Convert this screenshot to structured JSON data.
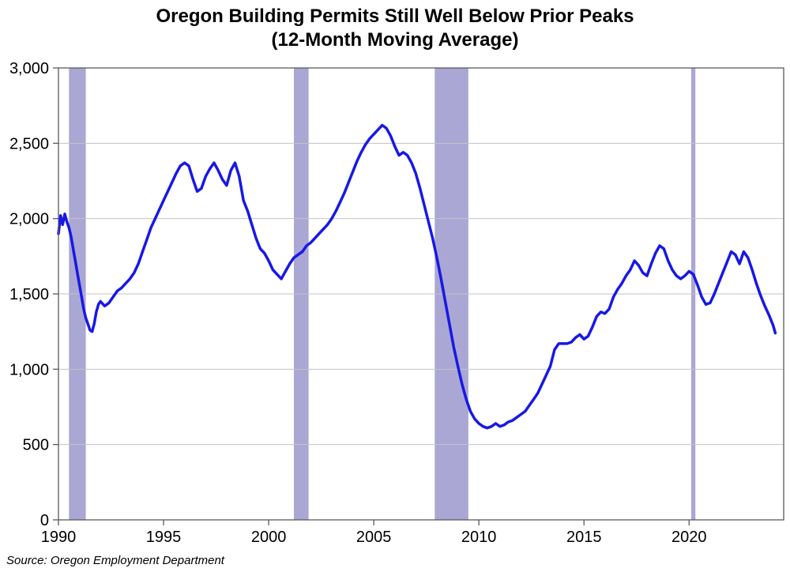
{
  "chart": {
    "type": "line",
    "title_line1": "Oregon Building Permits Still Well Below Prior Peaks",
    "title_line2": "(12-Month Moving Average)",
    "title_fontsize": 24,
    "source_text": "Source: Oregon Employment Department",
    "source_fontsize": 15,
    "background_color": "#ffffff",
    "plot_border_color": "#5b5b5b",
    "grid_color": "#c3c3c3",
    "grid_width": 1,
    "line_color": "#1818e6",
    "line_width": 3.5,
    "recession_fill": "#a3a0d0",
    "recession_opacity": 0.92,
    "xlim": [
      1990,
      2024.5
    ],
    "ylim": [
      0,
      3000
    ],
    "xtick_step": 5,
    "xticks": [
      1990,
      1995,
      2000,
      2005,
      2010,
      2015,
      2020
    ],
    "xtick_labels": [
      "1990",
      "1995",
      "2000",
      "2005",
      "2010",
      "2015",
      "2020"
    ],
    "ytick_step": 500,
    "yticks": [
      0,
      500,
      1000,
      1500,
      2000,
      2500,
      3000
    ],
    "ytick_labels": [
      "0",
      "500",
      "1,000",
      "1,500",
      "2,000",
      "2,500",
      "3,000"
    ],
    "tick_fontsize": 20,
    "tick_color": "#000000",
    "recession_bands": [
      [
        1990.5,
        1991.3
      ],
      [
        2001.2,
        2001.9
      ],
      [
        2007.9,
        2009.5
      ],
      [
        2020.1,
        2020.3
      ]
    ],
    "series_x": [
      1990.0,
      1990.1,
      1990.2,
      1990.3,
      1990.4,
      1990.5,
      1990.6,
      1990.7,
      1990.8,
      1990.9,
      1991.0,
      1991.1,
      1991.2,
      1991.3,
      1991.4,
      1991.5,
      1991.6,
      1991.7,
      1991.8,
      1991.9,
      1992.0,
      1992.2,
      1992.4,
      1992.6,
      1992.8,
      1993.0,
      1993.2,
      1993.4,
      1993.6,
      1993.8,
      1994.0,
      1994.2,
      1994.4,
      1994.6,
      1994.8,
      1995.0,
      1995.2,
      1995.4,
      1995.6,
      1995.8,
      1996.0,
      1996.2,
      1996.4,
      1996.6,
      1996.8,
      1997.0,
      1997.2,
      1997.4,
      1997.6,
      1997.8,
      1998.0,
      1998.2,
      1998.4,
      1998.6,
      1998.8,
      1999.0,
      1999.2,
      1999.4,
      1999.6,
      1999.8,
      2000.0,
      2000.2,
      2000.4,
      2000.6,
      2000.8,
      2001.0,
      2001.2,
      2001.4,
      2001.6,
      2001.8,
      2002.0,
      2002.2,
      2002.4,
      2002.6,
      2002.8,
      2003.0,
      2003.2,
      2003.4,
      2003.6,
      2003.8,
      2004.0,
      2004.2,
      2004.4,
      2004.6,
      2004.8,
      2005.0,
      2005.2,
      2005.4,
      2005.6,
      2005.8,
      2006.0,
      2006.2,
      2006.4,
      2006.6,
      2006.8,
      2007.0,
      2007.2,
      2007.4,
      2007.6,
      2007.8,
      2008.0,
      2008.2,
      2008.4,
      2008.6,
      2008.8,
      2009.0,
      2009.2,
      2009.4,
      2009.6,
      2009.8,
      2010.0,
      2010.2,
      2010.4,
      2010.6,
      2010.8,
      2011.0,
      2011.2,
      2011.4,
      2011.6,
      2011.8,
      2012.0,
      2012.2,
      2012.4,
      2012.6,
      2012.8,
      2013.0,
      2013.2,
      2013.4,
      2013.6,
      2013.8,
      2014.0,
      2014.2,
      2014.4,
      2014.6,
      2014.8,
      2015.0,
      2015.2,
      2015.4,
      2015.6,
      2015.8,
      2016.0,
      2016.2,
      2016.4,
      2016.6,
      2016.8,
      2017.0,
      2017.2,
      2017.4,
      2017.6,
      2017.8,
      2018.0,
      2018.2,
      2018.4,
      2018.6,
      2018.8,
      2019.0,
      2019.2,
      2019.4,
      2019.6,
      2019.8,
      2020.0,
      2020.2,
      2020.4,
      2020.6,
      2020.8,
      2021.0,
      2021.2,
      2021.4,
      2021.6,
      2021.8,
      2022.0,
      2022.2,
      2022.4,
      2022.6,
      2022.8,
      2023.0,
      2023.2,
      2023.4,
      2023.6,
      2023.8,
      2024.0,
      2024.1
    ],
    "series_y": [
      1900,
      2020,
      1960,
      2030,
      1980,
      1940,
      1880,
      1800,
      1720,
      1640,
      1560,
      1480,
      1400,
      1340,
      1300,
      1260,
      1250,
      1300,
      1380,
      1430,
      1450,
      1420,
      1440,
      1480,
      1520,
      1540,
      1570,
      1600,
      1640,
      1700,
      1780,
      1860,
      1940,
      2000,
      2060,
      2120,
      2180,
      2240,
      2300,
      2350,
      2370,
      2350,
      2260,
      2180,
      2200,
      2280,
      2330,
      2370,
      2320,
      2260,
      2220,
      2320,
      2370,
      2280,
      2120,
      2050,
      1960,
      1870,
      1800,
      1770,
      1720,
      1660,
      1630,
      1600,
      1650,
      1700,
      1740,
      1760,
      1780,
      1820,
      1840,
      1870,
      1900,
      1930,
      1960,
      2000,
      2050,
      2110,
      2170,
      2240,
      2310,
      2380,
      2440,
      2490,
      2530,
      2560,
      2590,
      2620,
      2600,
      2550,
      2480,
      2420,
      2440,
      2420,
      2370,
      2300,
      2200,
      2090,
      1980,
      1870,
      1740,
      1600,
      1450,
      1300,
      1150,
      1020,
      900,
      800,
      720,
      670,
      640,
      620,
      610,
      620,
      640,
      620,
      630,
      650,
      660,
      680,
      700,
      720,
      760,
      800,
      840,
      900,
      960,
      1020,
      1130,
      1170,
      1170,
      1170,
      1180,
      1210,
      1230,
      1200,
      1220,
      1280,
      1350,
      1380,
      1370,
      1400,
      1480,
      1530,
      1570,
      1620,
      1660,
      1720,
      1690,
      1640,
      1620,
      1700,
      1770,
      1820,
      1800,
      1720,
      1660,
      1620,
      1600,
      1620,
      1650,
      1630,
      1560,
      1480,
      1430,
      1440,
      1500,
      1570,
      1640,
      1710,
      1780,
      1760,
      1700,
      1780,
      1740,
      1660,
      1570,
      1490,
      1420,
      1360,
      1290,
      1240
    ]
  }
}
